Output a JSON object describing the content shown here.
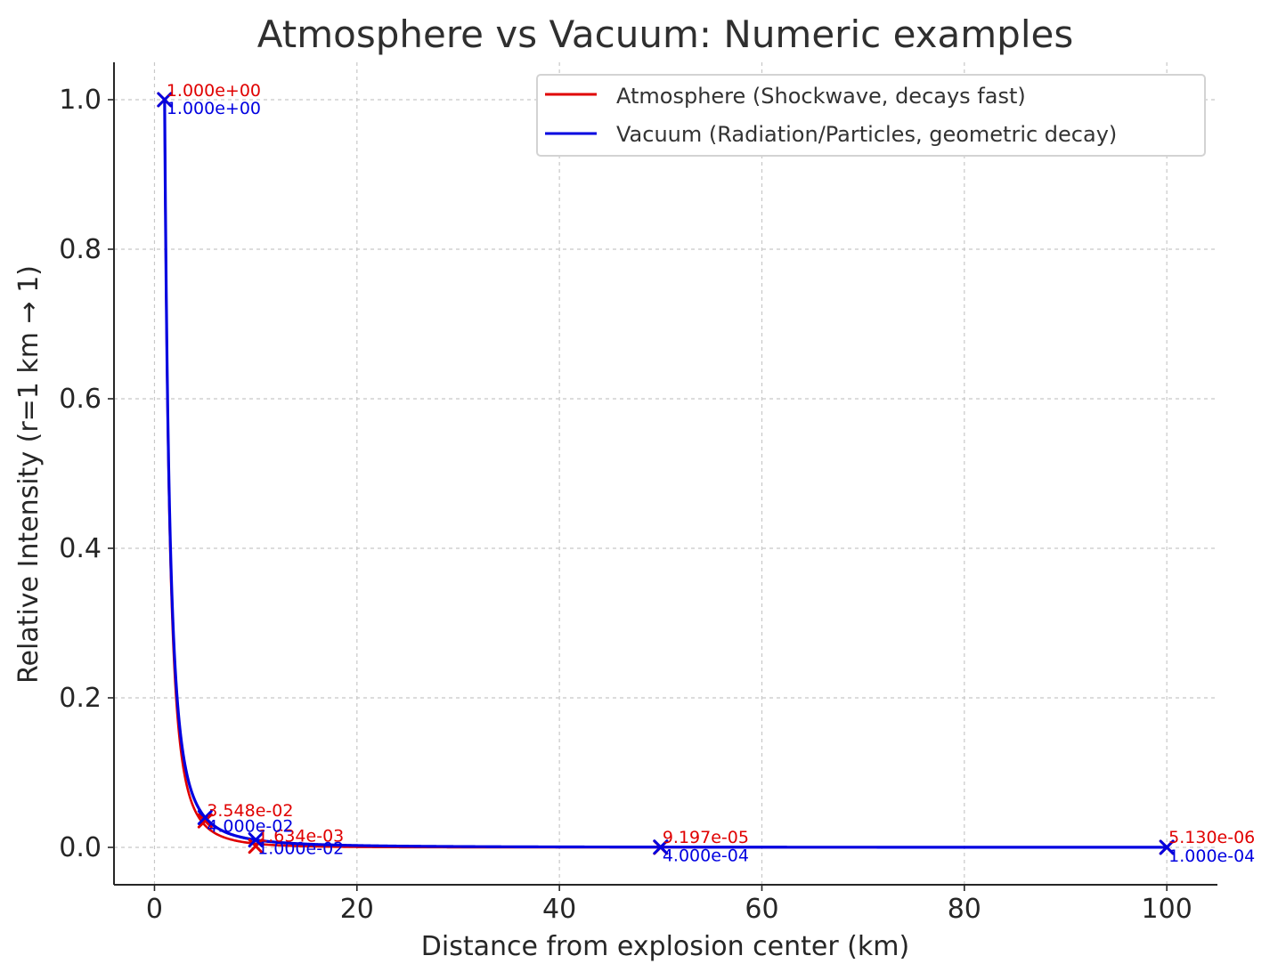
{
  "chart_data": {
    "type": "line",
    "title": "Atmosphere vs Vacuum: Numeric examples",
    "xlabel": "Distance from explosion center (km)",
    "ylabel": "Relative Intensity (r=1 km → 1)",
    "xlim": [
      -4,
      105
    ],
    "ylim": [
      -0.05,
      1.05
    ],
    "xticks": [
      0,
      20,
      40,
      60,
      80,
      100
    ],
    "yticks": [
      0.0,
      0.2,
      0.4,
      0.6,
      0.8,
      1.0
    ],
    "xtick_labels": [
      "0",
      "20",
      "40",
      "60",
      "80",
      "100"
    ],
    "ytick_labels": [
      "0.0",
      "0.2",
      "0.4",
      "0.6",
      "0.8",
      "1.0"
    ],
    "grid": true,
    "legend_position": "top-right",
    "series": [
      {
        "name": "Atmosphere (Shockwave, decays fast)",
        "color": "#e00000",
        "model": {
          "kind": "inverse_square_exponential",
          "x0": 1,
          "rate": 0.078
        },
        "marked_points": [
          {
            "x": 1,
            "y": 1.0,
            "label": "1.000e+00"
          },
          {
            "x": 5,
            "y": 0.03548,
            "label": "3.548e-02"
          },
          {
            "x": 10,
            "y": 0.001634,
            "label": "1.634e-03"
          },
          {
            "x": 50,
            "y": 9.197e-05,
            "label": "9.197e-05"
          },
          {
            "x": 100,
            "y": 5.13e-06,
            "label": "5.130e-06"
          }
        ]
      },
      {
        "name": "Vacuum (Radiation/Particles, geometric decay)",
        "color": "#0000e0",
        "model": {
          "kind": "inverse_square",
          "x0": 1
        },
        "marked_points": [
          {
            "x": 1,
            "y": 1.0,
            "label": "1.000e+00"
          },
          {
            "x": 5,
            "y": 0.04,
            "label": "4.000e-02"
          },
          {
            "x": 10,
            "y": 0.01,
            "label": "1.000e-02"
          },
          {
            "x": 50,
            "y": 0.0004,
            "label": "4.000e-04"
          },
          {
            "x": 100,
            "y": 0.0001,
            "label": "1.000e-04"
          }
        ]
      }
    ]
  }
}
